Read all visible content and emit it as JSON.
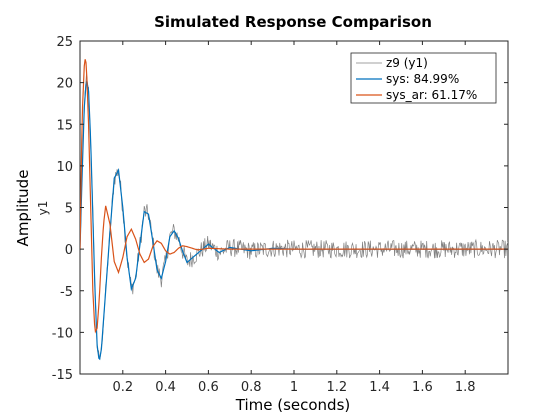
{
  "chart_data": {
    "type": "line",
    "title": "Simulated Response Comparison",
    "xlabel": "Time (seconds)",
    "ylabel": "Amplitude",
    "channel_label": "y1",
    "xlim": [
      0,
      2
    ],
    "ylim": [
      -15,
      25
    ],
    "x_ticks": [
      0.2,
      0.4,
      0.6,
      0.8,
      1,
      1.2,
      1.4,
      1.6,
      1.8
    ],
    "x_tick_labels": [
      "0.2",
      "0.4",
      "0.6",
      "0.8",
      "1",
      "1.2",
      "1.4",
      "1.6",
      "1.8"
    ],
    "y_ticks": [
      -15,
      -10,
      -5,
      0,
      5,
      10,
      15,
      20,
      25
    ],
    "y_tick_labels": [
      "-15",
      "-10",
      "-5",
      "0",
      "5",
      "10",
      "15",
      "20",
      "25"
    ],
    "grid": false,
    "legend_position": "top-right",
    "series": [
      {
        "name": "z9 (y1)",
        "color": "#808080",
        "style": "noisy-measured",
        "x": [
          0,
          0.01,
          0.02,
          0.03,
          0.04,
          0.05,
          0.06,
          0.07,
          0.08,
          0.09,
          0.1,
          0.12,
          0.14,
          0.16,
          0.18,
          0.2,
          0.22,
          0.24,
          0.26,
          0.28,
          0.3,
          0.32,
          0.34,
          0.36,
          0.38,
          0.4,
          0.42,
          0.44,
          0.46,
          0.48,
          0.5,
          0.55,
          0.6,
          0.65,
          0.7,
          0.8,
          0.9,
          1.0,
          1.2,
          1.4,
          1.6,
          1.8,
          2.0
        ],
        "values": [
          0,
          9,
          17,
          20.5,
          19,
          13,
          4,
          -5,
          -11.5,
          -13.5,
          -12,
          -5,
          2,
          8.5,
          9.5,
          5,
          -1,
          -4.8,
          -3.5,
          0.5,
          4.5,
          4.2,
          1,
          -2.5,
          -3.5,
          -1.5,
          1.5,
          2.2,
          1.3,
          -0.3,
          -1.6,
          -0.5,
          0.6,
          -0.4,
          0.2,
          -0.2,
          0.1,
          0,
          0,
          0,
          0,
          0,
          0
        ]
      },
      {
        "name": "sys: 84.99%",
        "color": "#0072BD",
        "style": "line",
        "x": [
          0,
          0.01,
          0.02,
          0.03,
          0.04,
          0.05,
          0.06,
          0.07,
          0.08,
          0.09,
          0.1,
          0.12,
          0.14,
          0.16,
          0.18,
          0.2,
          0.22,
          0.24,
          0.26,
          0.28,
          0.3,
          0.32,
          0.34,
          0.36,
          0.38,
          0.4,
          0.42,
          0.44,
          0.46,
          0.48,
          0.5,
          0.55,
          0.6,
          0.65,
          0.7,
          0.8,
          0.9,
          1.0,
          1.2,
          1.4,
          1.6,
          1.8,
          2.0
        ],
        "values": [
          0,
          9,
          17,
          20.5,
          19,
          13,
          4,
          -5,
          -11.5,
          -13.5,
          -12,
          -5,
          2,
          8.5,
          9.5,
          5,
          -1,
          -4.8,
          -3.5,
          0.5,
          4.5,
          4.2,
          1,
          -2.5,
          -3.5,
          -1.5,
          1.5,
          2.2,
          1.3,
          -0.3,
          -1.6,
          -0.5,
          0.6,
          -0.4,
          0.2,
          -0.2,
          0.1,
          0,
          0,
          0,
          0,
          0,
          0
        ]
      },
      {
        "name": "sys_ar: 61.17%",
        "color": "#D95319",
        "style": "line",
        "x": [
          0,
          0.01,
          0.02,
          0.025,
          0.03,
          0.04,
          0.05,
          0.06,
          0.07,
          0.08,
          0.09,
          0.1,
          0.11,
          0.12,
          0.14,
          0.16,
          0.18,
          0.2,
          0.22,
          0.24,
          0.26,
          0.28,
          0.3,
          0.32,
          0.34,
          0.36,
          0.38,
          0.4,
          0.42,
          0.44,
          0.46,
          0.48,
          0.5,
          0.55,
          0.6,
          0.7,
          0.8,
          1.0,
          1.5,
          2.0
        ],
        "values": [
          0,
          16,
          22,
          23,
          22,
          15,
          5,
          -5,
          -10,
          -9.5,
          -6,
          -1,
          3,
          5.2,
          3,
          -1.5,
          -2.8,
          -1,
          1.5,
          2.4,
          1.2,
          -0.6,
          -1.6,
          -1.2,
          0.3,
          1.0,
          0.7,
          -0.2,
          -0.6,
          -0.4,
          0.1,
          0.4,
          0.3,
          -0.1,
          0.1,
          0,
          0,
          0,
          0,
          0
        ]
      }
    ]
  }
}
